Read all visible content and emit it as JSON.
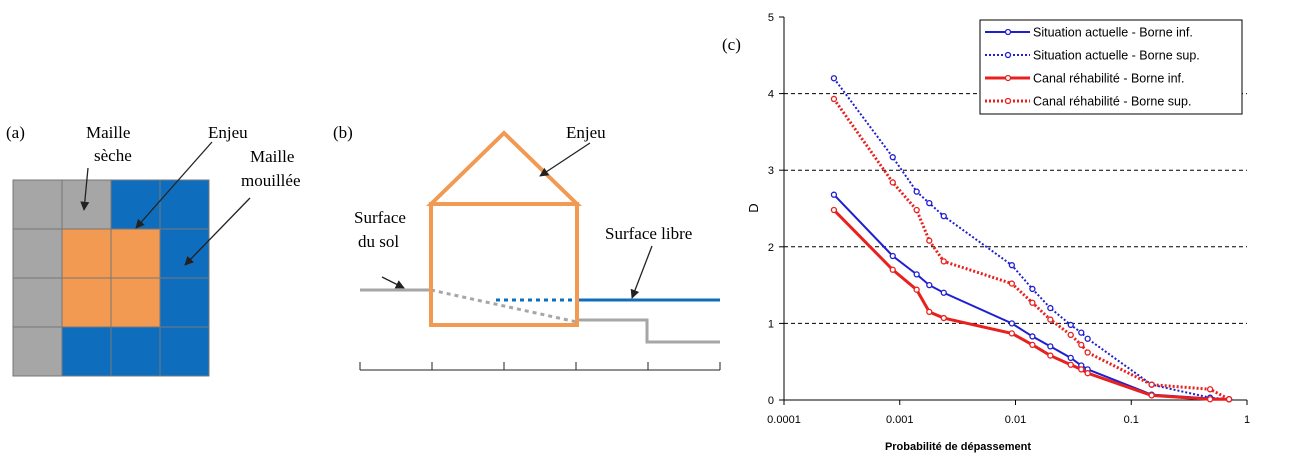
{
  "panel_a": {
    "tag": "(a)",
    "dry_label": [
      "Maille",
      "sèche"
    ],
    "stake_label": "Enjeu",
    "wet_label": [
      "Maille",
      "mouillée"
    ]
  },
  "panel_b": {
    "tag": "(b)",
    "stake_label": "Enjeu",
    "ground_label": [
      "Surface",
      "du sol"
    ],
    "water_label": "Surface libre"
  },
  "chart_data": {
    "type": "line",
    "tag": "(c)",
    "xlabel": "Probabilité de dépassement",
    "ylabel": "D",
    "xscale": "log",
    "xlim": [
      0.0001,
      1
    ],
    "xticks": [
      0.0001,
      0.001,
      0.01,
      0.1,
      1
    ],
    "ylim": [
      0,
      5
    ],
    "yticks": [
      0,
      1,
      2,
      3,
      4,
      5
    ],
    "grid": true,
    "legend": "upper right",
    "x": [
      0.00027,
      0.00087,
      0.0014,
      0.0018,
      0.0024,
      0.0093,
      0.014,
      0.02,
      0.03,
      0.037,
      0.042,
      0.15,
      0.48,
      0.7
    ],
    "series": [
      {
        "name": "Situation actuelle - Borne inf.",
        "color": "#1f1fcf",
        "dash": false,
        "width": 2,
        "values": [
          2.68,
          1.88,
          1.64,
          1.5,
          1.4,
          1.0,
          0.83,
          0.7,
          0.55,
          0.45,
          0.4,
          0.07,
          0.02,
          0.01
        ]
      },
      {
        "name": "Situation actuelle - Borne sup.",
        "color": "#1f1fcf",
        "dash": true,
        "width": 2,
        "values": [
          4.2,
          3.17,
          2.72,
          2.57,
          2.4,
          1.76,
          1.45,
          1.2,
          0.98,
          0.88,
          0.8,
          0.2,
          0.03,
          0.01
        ]
      },
      {
        "name": "Canal réhabilité - Borne inf.",
        "color": "#e8211f",
        "dash": false,
        "width": 3,
        "values": [
          2.48,
          1.7,
          1.44,
          1.15,
          1.07,
          0.87,
          0.72,
          0.58,
          0.46,
          0.4,
          0.35,
          0.06,
          0.01,
          0.01
        ]
      },
      {
        "name": "Canal réhabilité - Borne sup.",
        "color": "#e8211f",
        "dash": true,
        "width": 3,
        "values": [
          3.93,
          2.84,
          2.48,
          2.08,
          1.81,
          1.52,
          1.27,
          1.05,
          0.85,
          0.72,
          0.62,
          0.2,
          0.14,
          0.01
        ]
      }
    ]
  }
}
